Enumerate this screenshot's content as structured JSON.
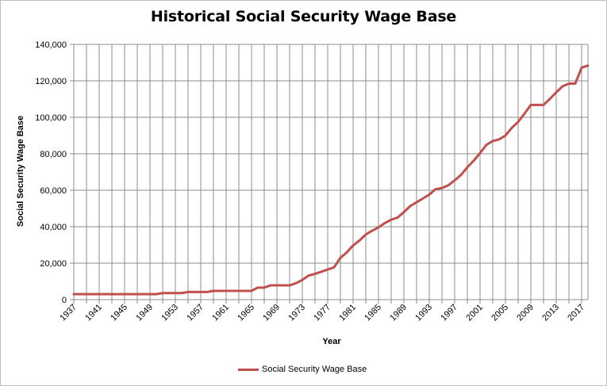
{
  "chart_data": {
    "type": "line",
    "title": "Historical Social Security Wage Base",
    "xlabel": "Year",
    "ylabel": "Social Security Wage Base",
    "ylim": [
      0,
      140000
    ],
    "yticks": [
      0,
      20000,
      40000,
      60000,
      80000,
      100000,
      120000,
      140000
    ],
    "ytick_labels": [
      "0",
      "20,000",
      "40,000",
      "60,000",
      "80,000",
      "100,000",
      "120,000",
      "140,000"
    ],
    "xlim": [
      1937,
      2018
    ],
    "xtick_labels": [
      "1937",
      "1941",
      "1945",
      "1949",
      "1953",
      "1957",
      "1961",
      "1965",
      "1969",
      "1973",
      "1977",
      "1981",
      "1985",
      "1989",
      "1993",
      "1997",
      "2001",
      "2005",
      "2009",
      "2013",
      "2017"
    ],
    "grid": true,
    "legend_position": "bottom",
    "series": [
      {
        "name": "Social Security Wage Base",
        "color": "#c0504d",
        "x": [
          1937,
          1938,
          1939,
          1940,
          1941,
          1942,
          1943,
          1944,
          1945,
          1946,
          1947,
          1948,
          1949,
          1950,
          1951,
          1952,
          1953,
          1954,
          1955,
          1956,
          1957,
          1958,
          1959,
          1960,
          1961,
          1962,
          1963,
          1964,
          1965,
          1966,
          1967,
          1968,
          1969,
          1970,
          1971,
          1972,
          1973,
          1974,
          1975,
          1976,
          1977,
          1978,
          1979,
          1980,
          1981,
          1982,
          1983,
          1984,
          1985,
          1986,
          1987,
          1988,
          1989,
          1990,
          1991,
          1992,
          1993,
          1994,
          1995,
          1996,
          1997,
          1998,
          1999,
          2000,
          2001,
          2002,
          2003,
          2004,
          2005,
          2006,
          2007,
          2008,
          2009,
          2010,
          2011,
          2012,
          2013,
          2014,
          2015,
          2016,
          2017,
          2018
        ],
        "values": [
          3000,
          3000,
          3000,
          3000,
          3000,
          3000,
          3000,
          3000,
          3000,
          3000,
          3000,
          3000,
          3000,
          3000,
          3600,
          3600,
          3600,
          3600,
          4200,
          4200,
          4200,
          4200,
          4800,
          4800,
          4800,
          4800,
          4800,
          4800,
          4800,
          6600,
          6600,
          7800,
          7800,
          7800,
          7800,
          9000,
          10800,
          13200,
          14100,
          15300,
          16500,
          17700,
          22900,
          25900,
          29700,
          32400,
          35700,
          37800,
          39600,
          42000,
          43800,
          45000,
          48000,
          51300,
          53400,
          55500,
          57600,
          60600,
          61200,
          62700,
          65400,
          68400,
          72600,
          76200,
          80400,
          84900,
          87000,
          87900,
          90000,
          94200,
          97500,
          102000,
          106800,
          106800,
          106800,
          110100,
          113700,
          117000,
          118500,
          118500,
          127200,
          128400
        ]
      }
    ]
  }
}
